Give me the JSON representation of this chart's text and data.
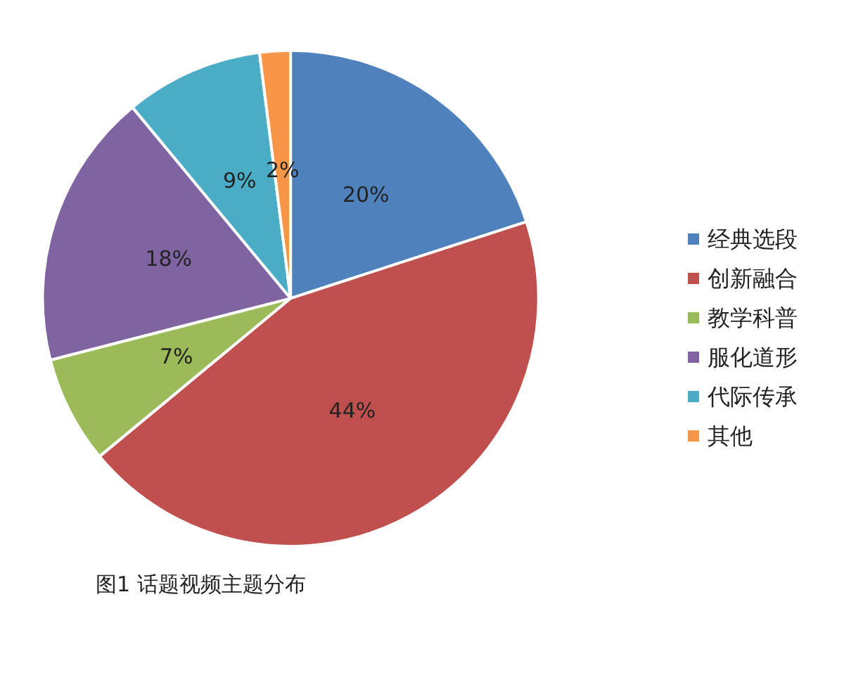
{
  "chart_data": {
    "type": "pie",
    "categories": [
      "经典选段",
      "创新融合",
      "教学科普",
      "服化道形",
      "代际传承",
      "其他"
    ],
    "values": [
      20,
      44,
      7,
      18,
      9,
      2
    ],
    "colors": [
      "#4f81bd",
      "#c0504d",
      "#9bbb59",
      "#8064a2",
      "#4bacc6",
      "#f79646"
    ],
    "value_labels": [
      "20%",
      "44%",
      "7%",
      "18%",
      "9%",
      "2%"
    ],
    "legend": "right",
    "annotations": [
      "图1 话题视频主题分布"
    ]
  }
}
